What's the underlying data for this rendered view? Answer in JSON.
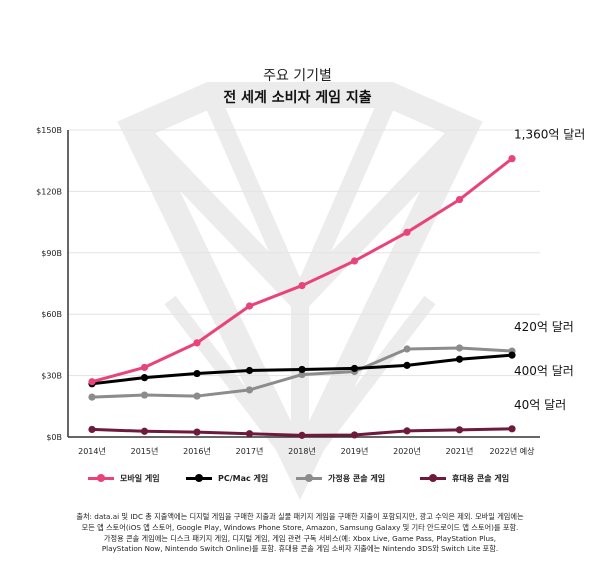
{
  "header": {
    "subtitle": "주요 기기별",
    "title": "전 세계 소비자 게임 지출"
  },
  "colors": {
    "mobile": "#e8437a",
    "pc": "#000000",
    "console": "#8c8c8c",
    "handheld": "#6e1a3c",
    "grid": "#e3e3e3",
    "watermark": "#ececec"
  },
  "chart_data": {
    "type": "line",
    "x": [
      "2014년",
      "2015년",
      "2016년",
      "2017년",
      "2018년",
      "2019년",
      "2020년",
      "2021년",
      "2022년 예상"
    ],
    "ylim": [
      0,
      150
    ],
    "yticks": [
      "$0B",
      "$30B",
      "$60B",
      "$90B",
      "$120B",
      "$150B"
    ],
    "series": [
      {
        "name": "모바일 게임",
        "key": "mobile",
        "values": [
          27,
          34,
          46,
          64,
          74,
          86,
          100,
          116,
          136
        ]
      },
      {
        "name": "PC/Mac 게임",
        "key": "pc",
        "values": [
          26,
          29,
          31,
          32.5,
          33,
          33.5,
          35,
          38,
          40
        ]
      },
      {
        "name": "가정용 콘솔 게임",
        "key": "console",
        "values": [
          19.5,
          20.5,
          20,
          23,
          30.5,
          32,
          43,
          43.5,
          42
        ]
      },
      {
        "name": "휴대용 콘솔 게임",
        "key": "handheld",
        "values": [
          3.7,
          2.8,
          2.4,
          1.6,
          0.8,
          1,
          3,
          3.5,
          4
        ]
      }
    ],
    "annotations": [
      {
        "text": "1,360억 달러",
        "series": "mobile"
      },
      {
        "text": "420억 달러",
        "series": "console"
      },
      {
        "text": "400억 달러",
        "series": "pc"
      },
      {
        "text": "40억 달러",
        "series": "handheld"
      }
    ]
  },
  "source": {
    "lines": [
      "출처: data.ai 및 IDC 총 지출액에는 디지털 게임을 구매한 지출과 실물 패키지 게임을 구매한 지출이 포함되지만, 광고 수익은 제외. 모바일 게임에는",
      "모든 앱 스토어(iOS 앱 스토어, Google Play, Windows Phone Store, Amazon, Samsung Galaxy 및 기타 안드로이드 앱 스토어)를 포함.",
      "가정용 콘솔 게임에는 디스크 패키지 게임, 디지털 게임, 게임 관련 구독 서비스(예: Xbox Live, Game Pass, PlayStation Plus,",
      "PlayStation Now, Nintendo Switch Online)를 포함. 휴대용 콘솔 게임 소비자 지출에는 Nintendo 3DS와 Switch Lite 포함."
    ]
  }
}
